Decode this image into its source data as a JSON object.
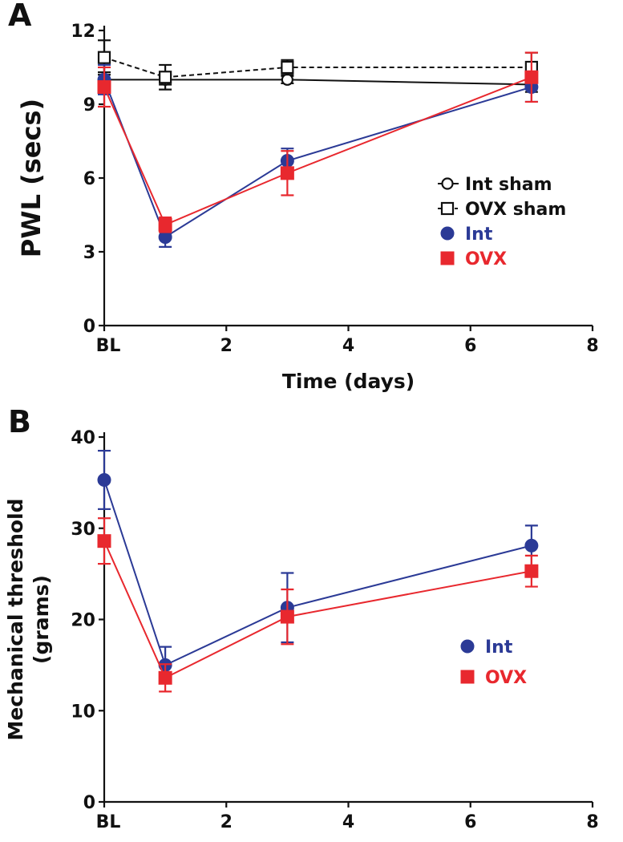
{
  "chart_data": [
    {
      "type": "line",
      "panel_label": "A",
      "xlabel": "Time (days)",
      "ylabel": "PWL (secs)",
      "xlim": [
        0,
        8
      ],
      "ylim": [
        0,
        12
      ],
      "x_ticks": [
        {
          "value": 0,
          "label": "BL"
        },
        {
          "value": 2,
          "label": "2"
        },
        {
          "value": 4,
          "label": "4"
        },
        {
          "value": 6,
          "label": "6"
        },
        {
          "value": 8,
          "label": "8"
        }
      ],
      "y_ticks": [
        {
          "value": 0,
          "label": "0"
        },
        {
          "value": 3,
          "label": "3"
        },
        {
          "value": 6,
          "label": "6"
        },
        {
          "value": 9,
          "label": "9"
        },
        {
          "value": 12,
          "label": "12"
        }
      ],
      "legend_position": "right",
      "series": [
        {
          "name": "Int sham",
          "marker": "open-circle",
          "line": "solid",
          "color": "#111111",
          "x": [
            0,
            1,
            3,
            7
          ],
          "y": [
            10.0,
            10.0,
            10.0,
            9.8
          ],
          "err": [
            0.3,
            0.2,
            0.15,
            0.3
          ]
        },
        {
          "name": "OVX sham",
          "marker": "open-square",
          "line": "dashed",
          "color": "#111111",
          "x": [
            0,
            1,
            3,
            7
          ],
          "y": [
            10.9,
            10.1,
            10.5,
            10.5
          ],
          "err": [
            0.7,
            0.5,
            0.3,
            0.6
          ]
        },
        {
          "name": "Int",
          "marker": "filled-circle",
          "line": "solid",
          "color": "#2b3a96",
          "x": [
            0,
            1,
            3,
            7
          ],
          "y": [
            10.0,
            3.6,
            6.7,
            9.7
          ],
          "err": [
            0.6,
            0.4,
            0.5,
            0.6
          ]
        },
        {
          "name": "OVX",
          "marker": "filled-square",
          "line": "solid",
          "color": "#e8282e",
          "x": [
            0,
            1,
            3,
            7
          ],
          "y": [
            9.7,
            4.1,
            6.2,
            10.1
          ],
          "err": [
            0.8,
            0.3,
            0.9,
            1.0
          ]
        }
      ]
    },
    {
      "type": "line",
      "panel_label": "B",
      "xlabel": "Time (days)",
      "ylabel_lines": [
        "Mechanical threshold",
        "(grams)"
      ],
      "xlim": [
        0,
        8
      ],
      "ylim": [
        0,
        40
      ],
      "x_ticks": [
        {
          "value": 0,
          "label": "BL"
        },
        {
          "value": 2,
          "label": "2"
        },
        {
          "value": 4,
          "label": "4"
        },
        {
          "value": 6,
          "label": "6"
        },
        {
          "value": 8,
          "label": "8"
        }
      ],
      "y_ticks": [
        {
          "value": 0,
          "label": "0"
        },
        {
          "value": 10,
          "label": "10"
        },
        {
          "value": 20,
          "label": "20"
        },
        {
          "value": 30,
          "label": "30"
        },
        {
          "value": 40,
          "label": "40"
        }
      ],
      "legend_position": "right",
      "series": [
        {
          "name": "Int",
          "marker": "filled-circle",
          "line": "solid",
          "color": "#2b3a96",
          "x": [
            0,
            1,
            3,
            7
          ],
          "y": [
            35.3,
            15.0,
            21.3,
            28.1
          ],
          "err": [
            3.2,
            2.0,
            3.8,
            2.2
          ]
        },
        {
          "name": "OVX",
          "marker": "filled-square",
          "line": "solid",
          "color": "#e8282e",
          "x": [
            0,
            1,
            3,
            7
          ],
          "y": [
            28.6,
            13.6,
            20.3,
            25.3
          ],
          "err": [
            2.5,
            1.5,
            3.0,
            1.7
          ]
        }
      ]
    }
  ]
}
